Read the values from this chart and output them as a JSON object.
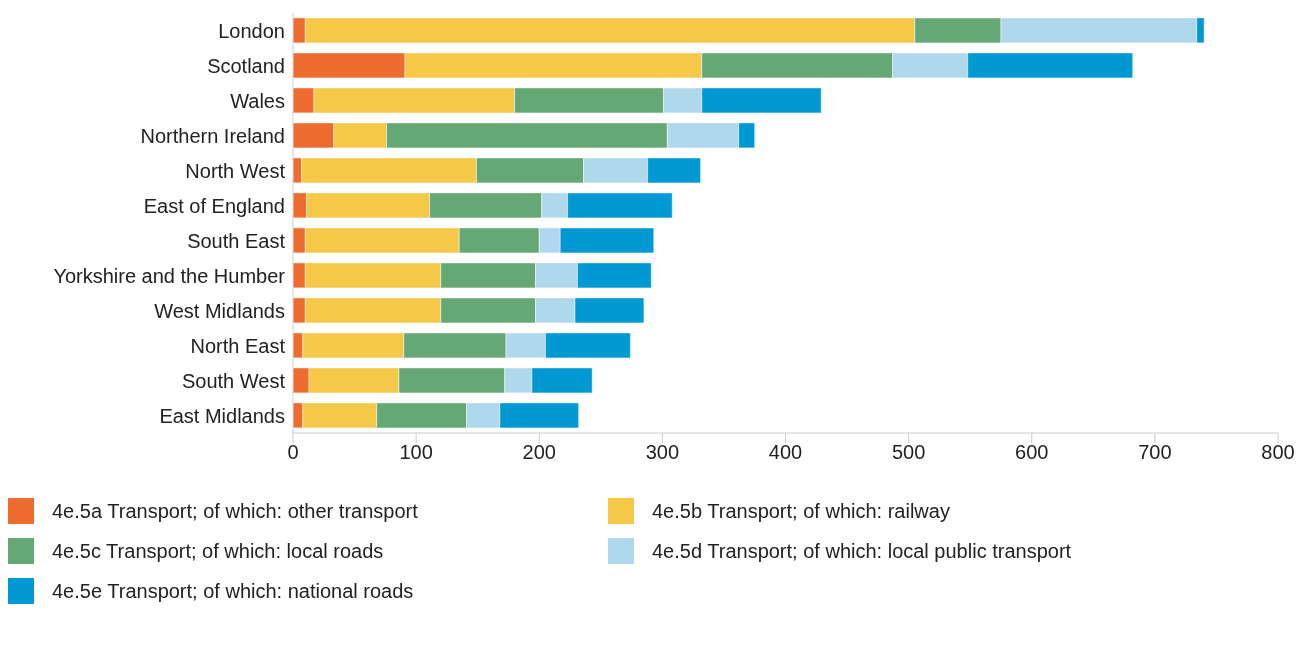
{
  "chart_data": {
    "type": "bar",
    "orientation": "horizontal",
    "stacked": true,
    "categories": [
      "London",
      "Scotland",
      "Wales",
      "Northern Ireland",
      "North West",
      "East of England",
      "South East",
      "Yorkshire and the Humber",
      "West Midlands",
      "North East",
      "South West",
      "East Midlands"
    ],
    "series": [
      {
        "name": "4e.5a Transport; of which: other transport",
        "color": "#ef6c30",
        "values": [
          10,
          91,
          17,
          33,
          7,
          11,
          10,
          10,
          10,
          8,
          13,
          8
        ]
      },
      {
        "name": "4e.5b Transport; of which: railway",
        "color": "#f5c848",
        "values": [
          495,
          241,
          163,
          43,
          142,
          100,
          125,
          110,
          110,
          82,
          73,
          60
        ]
      },
      {
        "name": "4e.5c Transport; of which: local roads",
        "color": "#65a775",
        "values": [
          70,
          155,
          121,
          228,
          87,
          91,
          65,
          77,
          77,
          83,
          86,
          73
        ]
      },
      {
        "name": "4e.5d Transport; of which: local public transport",
        "color": "#b0d8ec",
        "values": [
          159,
          61,
          31,
          58,
          52,
          21,
          17,
          34,
          32,
          32,
          22,
          27
        ]
      },
      {
        "name": "4e.5e Transport; of which: national roads",
        "color": "#0099d3",
        "values": [
          6,
          134,
          97,
          13,
          43,
          85,
          76,
          60,
          56,
          69,
          49,
          64
        ]
      }
    ],
    "xlim": [
      0,
      800
    ],
    "xticks": [
      0,
      100,
      200,
      300,
      400,
      500,
      600,
      700,
      800
    ],
    "grid": false,
    "legend": "bottom"
  }
}
